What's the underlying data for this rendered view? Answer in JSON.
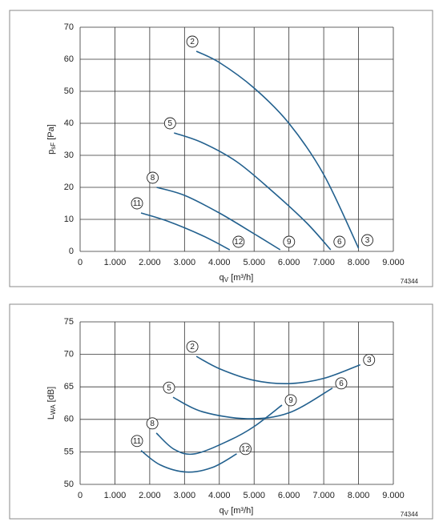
{
  "chart_data": [
    {
      "type": "line",
      "y_label": {
        "main": "p",
        "sub": "sF",
        "unit": " [Pa]"
      },
      "x_label": {
        "main": "q",
        "sub": "V",
        "unit": " [m³/h]"
      },
      "note": "74344",
      "xlim": [
        0,
        9000
      ],
      "xticks": [
        0,
        {
          "value": 1000,
          "label": "1.000"
        },
        {
          "value": 2000,
          "label": "2.000"
        },
        {
          "value": 3000,
          "label": "3.000"
        },
        {
          "value": 4000,
          "label": "4.000"
        },
        {
          "value": 5000,
          "label": "5.000"
        },
        {
          "value": 6000,
          "label": "6.000"
        },
        {
          "value": 7000,
          "label": "7.000"
        },
        {
          "value": 8000,
          "label": "8.000"
        },
        {
          "value": 9000,
          "label": "9.000"
        }
      ],
      "ylim": [
        0,
        70
      ],
      "yticks": [
        0,
        10,
        20,
        30,
        40,
        50,
        60,
        70
      ],
      "grid": true,
      "series": [
        {
          "name": "2",
          "end_label": "3",
          "color": "#22608e",
          "x": [
            3340,
            4000,
            5000,
            6000,
            7000,
            8000
          ],
          "values": [
            62.5,
            59,
            51,
            40,
            24,
            1
          ]
        },
        {
          "name": "5",
          "end_label": "6",
          "color": "#22608e",
          "x": [
            2700,
            3500,
            4500,
            5500,
            6500,
            7200
          ],
          "values": [
            37,
            34,
            28,
            19,
            9,
            0.5
          ]
        },
        {
          "name": "8",
          "end_label": "9",
          "color": "#22608e",
          "x": [
            2200,
            3000,
            4000,
            5000,
            5750
          ],
          "values": [
            20,
            17.5,
            12,
            5.5,
            0.5
          ]
        },
        {
          "name": "11",
          "end_label": "12",
          "color": "#22608e",
          "x": [
            1750,
            2500,
            3500,
            4300
          ],
          "values": [
            12,
            9.5,
            5,
            0.5
          ]
        }
      ]
    },
    {
      "type": "line",
      "y_label": {
        "main": "L",
        "sub": "WA",
        "unit": " [dB]"
      },
      "x_label": {
        "main": "q",
        "sub": "V",
        "unit": " [m³/h]"
      },
      "note": "74344",
      "xlim": [
        0,
        9000
      ],
      "xticks": [
        0,
        {
          "value": 1000,
          "label": "1.000"
        },
        {
          "value": 2000,
          "label": "2.000"
        },
        {
          "value": 3000,
          "label": "3.000"
        },
        {
          "value": 4000,
          "label": "4.000"
        },
        {
          "value": 5000,
          "label": "5.000"
        },
        {
          "value": 6000,
          "label": "6.000"
        },
        {
          "value": 7000,
          "label": "7.000"
        },
        {
          "value": 8000,
          "label": "8.000"
        },
        {
          "value": 9000,
          "label": "9.000"
        }
      ],
      "ylim": [
        50,
        75
      ],
      "yticks": [
        50,
        55,
        60,
        65,
        70,
        75
      ],
      "grid": true,
      "series": [
        {
          "name": "2",
          "end_label": "3",
          "color": "#22608e",
          "x": [
            3340,
            4000,
            5000,
            6000,
            7000,
            8050
          ],
          "values": [
            69.7,
            67.8,
            66,
            65.5,
            66.3,
            68.4
          ]
        },
        {
          "name": "5",
          "end_label": "6",
          "color": "#22608e",
          "x": [
            2670,
            3500,
            4800,
            6000,
            7250
          ],
          "values": [
            63.4,
            61.2,
            60.1,
            61,
            64.8
          ]
        },
        {
          "name": "8",
          "end_label": "9",
          "color": "#22608e",
          "x": [
            2190,
            2700,
            3300,
            4300,
            5000,
            5800
          ],
          "values": [
            57.9,
            55.4,
            54.7,
            56.8,
            58.9,
            62.2
          ]
        },
        {
          "name": "11",
          "end_label": "12",
          "color": "#22608e",
          "x": [
            1750,
            2300,
            3050,
            3800,
            4500
          ],
          "values": [
            55.2,
            53,
            51.9,
            52.6,
            54.7
          ]
        }
      ]
    }
  ]
}
